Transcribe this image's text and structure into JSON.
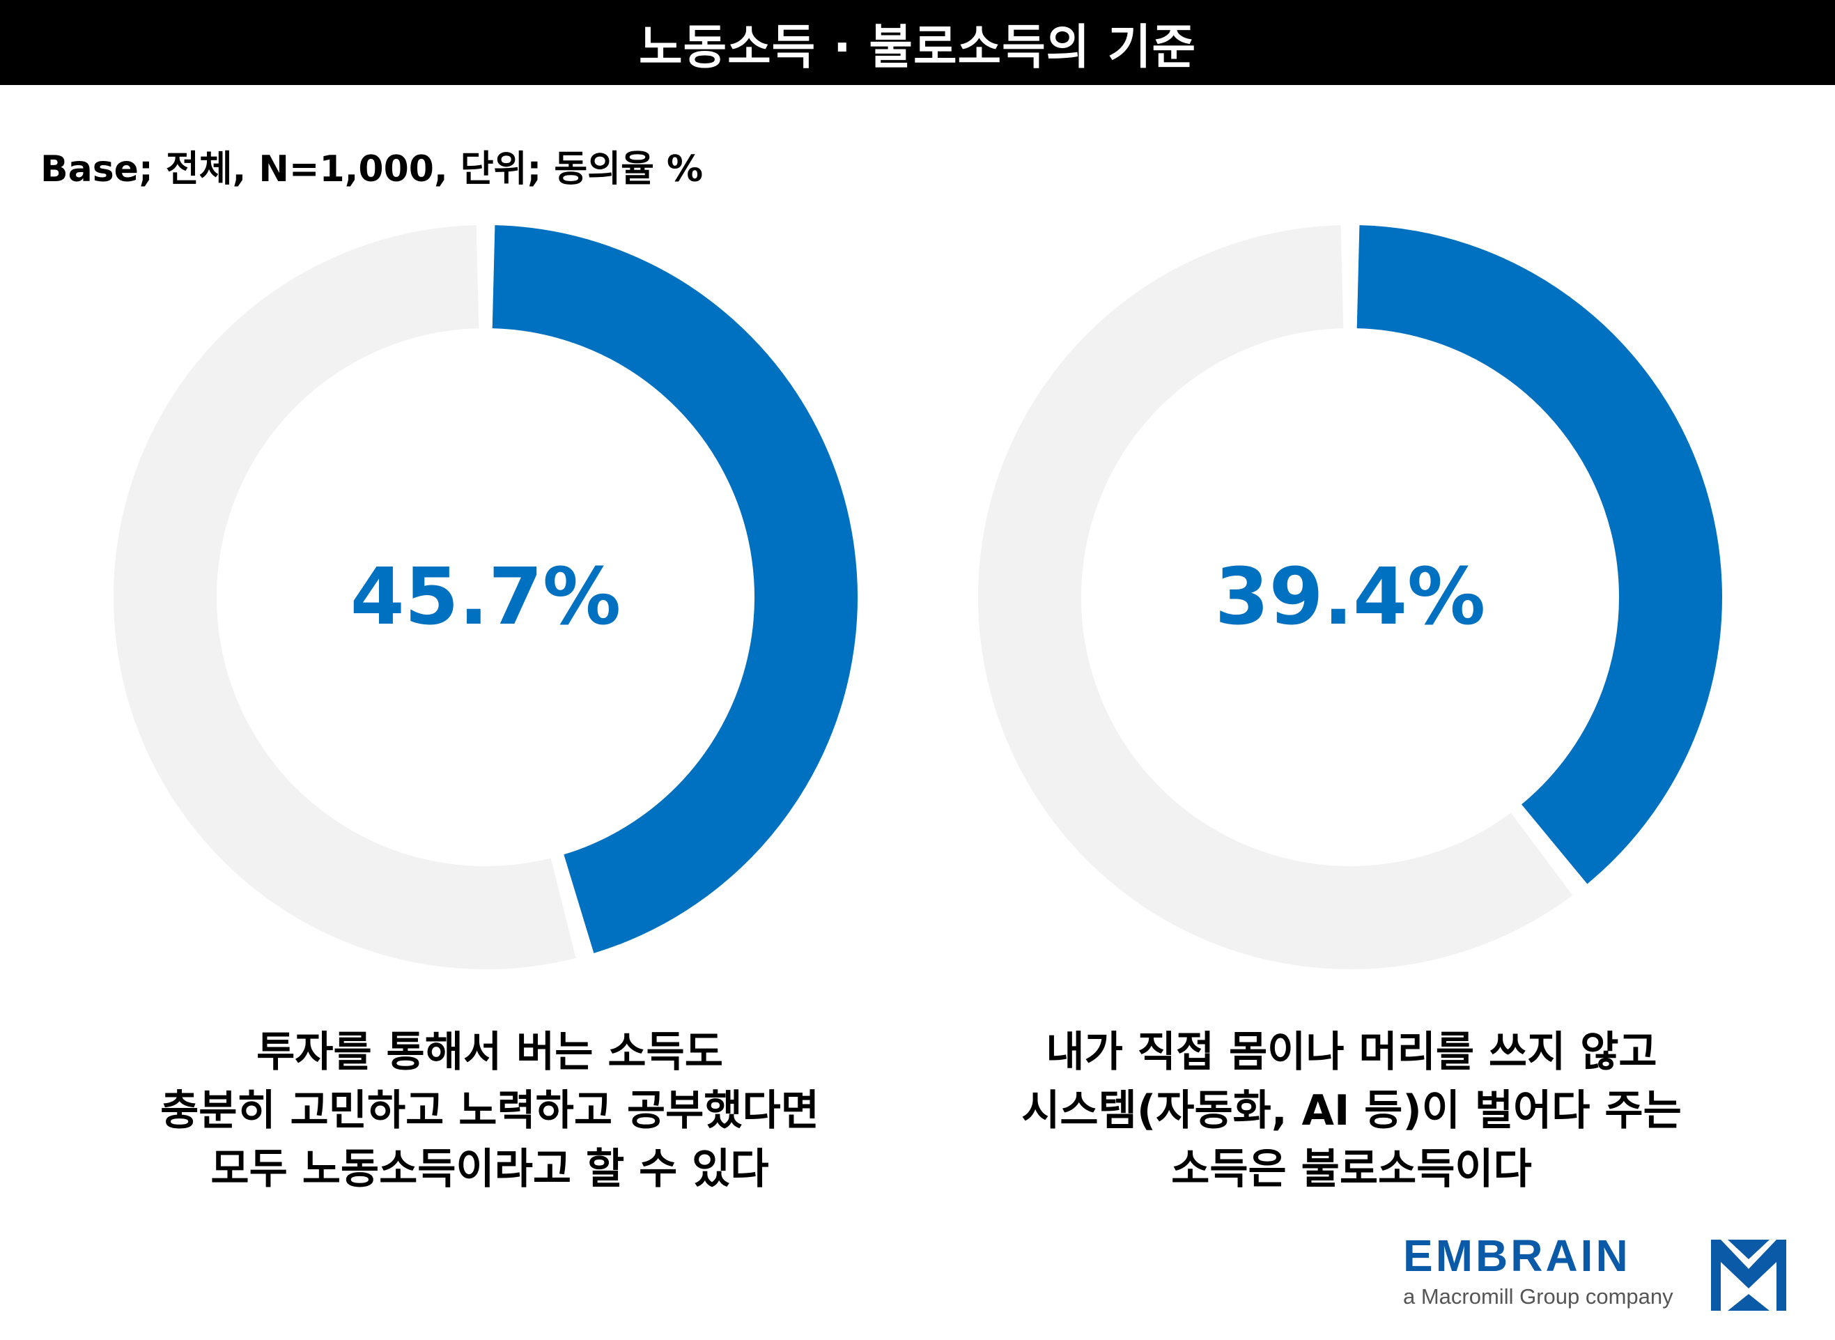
{
  "header": {
    "title": "노동소득 · 불로소득의 기준"
  },
  "base_note": "Base; 전체, N=1,000, 단위; 동의율 %",
  "chart_data": [
    {
      "type": "pie",
      "variant": "donut",
      "value": 45.7,
      "remainder": 54.3,
      "label": "45.7%",
      "unit": "%",
      "caption_lines": [
        "투자를 통해서 버는 소득도",
        "충분히 고민하고 노력하고 공부했다면",
        "모두 노동소득이라고 할 수 있다"
      ]
    },
    {
      "type": "pie",
      "variant": "donut",
      "value": 39.4,
      "remainder": 60.6,
      "label": "39.4%",
      "unit": "%",
      "caption_lines": [
        "내가 직접 몸이나 머리를 쓰지 않고",
        "시스템(자동화, AI 등)이 벌어다 주는",
        "소득은 불로소득이다"
      ]
    }
  ],
  "colors": {
    "accent": "#0070c0",
    "track": "#f2f2f2",
    "title_bg": "#000000",
    "logo": "#0a5aa8"
  },
  "logo": {
    "name": "EMBRAIN",
    "tagline": "a Macromill Group company",
    "icon": "embrain-logo-icon"
  }
}
